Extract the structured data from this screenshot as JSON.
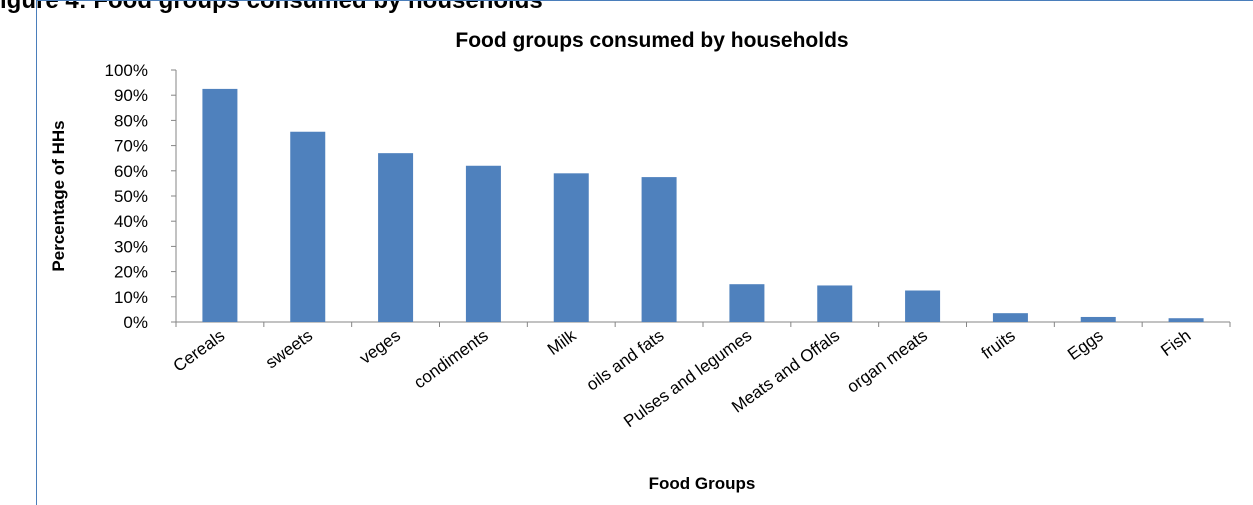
{
  "page": {
    "caption_cropped": "igure 4: Food groups consumed by households"
  },
  "chart_data": {
    "type": "bar",
    "title": "Food groups consumed by households",
    "xlabel": "Food Groups",
    "ylabel": "Percentage of HHs",
    "ylim": [
      0,
      100
    ],
    "y_ticks": [
      "0%",
      "10%",
      "20%",
      "30%",
      "40%",
      "50%",
      "60%",
      "70%",
      "80%",
      "90%",
      "100%"
    ],
    "grid": false,
    "legend": "none",
    "bar_color": "#4f81bd",
    "categories": [
      "Cereals",
      "sweets",
      "veges",
      "condiments",
      "Milk",
      "oils and fats",
      "Pulses and legumes",
      "Meats and Offals",
      "organ meats",
      "fruits",
      "Eggs",
      "Fish"
    ],
    "values": [
      92.5,
      75.5,
      67,
      62,
      59,
      57.5,
      15,
      14.5,
      12.5,
      3.5,
      2,
      1.5
    ]
  }
}
